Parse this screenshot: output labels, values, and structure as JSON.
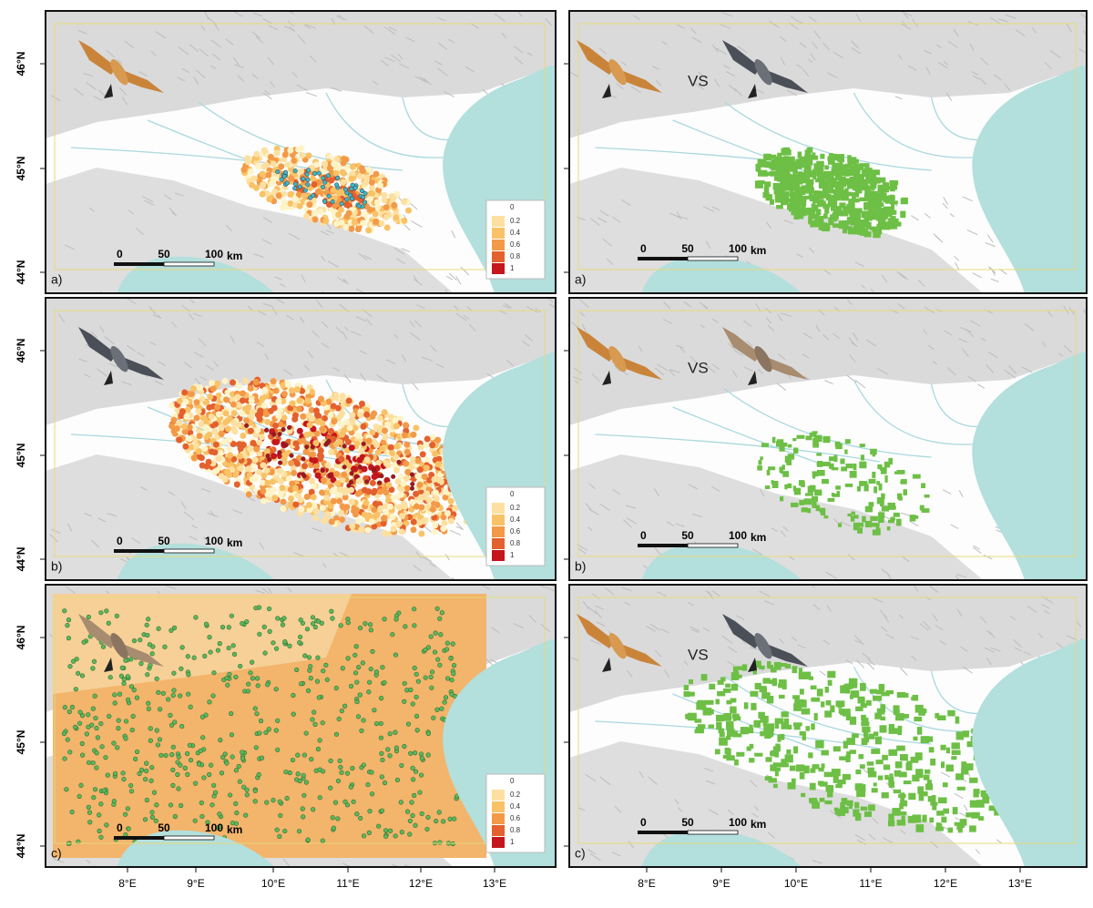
{
  "latitude_labels": [
    "46°N",
    "45°N",
    "44°N"
  ],
  "longitude_labels": [
    "8°E",
    "9°E",
    "10°E",
    "11°E",
    "12°E",
    "13°E"
  ],
  "scale_bar": {
    "labels": [
      "0",
      "50",
      "100"
    ],
    "unit": "km"
  },
  "legend": {
    "labels": [
      "0",
      "0.2",
      "0.4",
      "0.6",
      "0.8",
      "1"
    ]
  },
  "panels": [
    {
      "label": "a)"
    },
    {
      "label": "b)"
    },
    {
      "label": "c)"
    },
    {
      "label": "a)",
      "comparison": "VS"
    },
    {
      "label": "b)",
      "comparison": "VS"
    },
    {
      "label": "c)",
      "comparison": "VS"
    }
  ]
}
